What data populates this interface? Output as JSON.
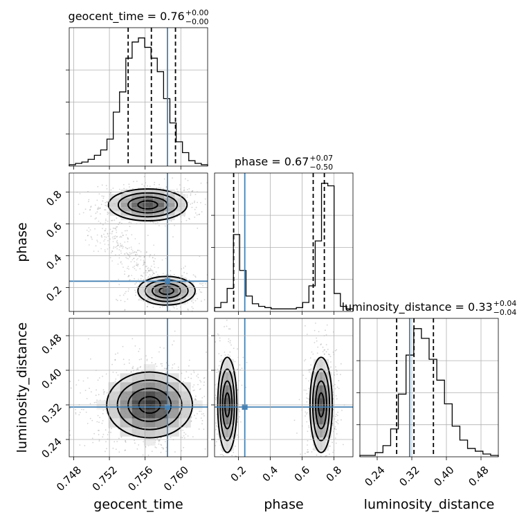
{
  "chart_data": {
    "type": "corner",
    "colors": {
      "truth": "#4682b4",
      "hist": "#000000",
      "grid": "#b0b0b0",
      "points": "#808080"
    },
    "parameters": [
      "geocent_time",
      "phase",
      "luminosity_distance"
    ],
    "axis_labels": {
      "geocent_time": "geocent_time",
      "phase": "phase",
      "luminosity_distance": "luminosity_distance"
    },
    "titles": {
      "geocent_time": {
        "main": "geocent_time = 0.76",
        "sup": "+0.00",
        "sub": "−0.00"
      },
      "phase": {
        "main": "phase = 0.67",
        "sup": "+0.07",
        "sub": "−0.50"
      },
      "luminosity_distance": {
        "main": "luminosity_distance = 0.33",
        "sup": "+0.04",
        "sub": "−0.04"
      }
    },
    "ranges": {
      "geocent_time": [
        0.7475,
        0.763
      ],
      "phase": [
        0.05,
        0.92
      ],
      "luminosity_distance": [
        0.2,
        0.52
      ]
    },
    "ticks": {
      "geocent_time": {
        "values": [
          0.748,
          0.752,
          0.756,
          0.76
        ],
        "labels": [
          "0.748",
          "0.752",
          "0.756",
          "0.760"
        ]
      },
      "phase": {
        "values": [
          0.2,
          0.4,
          0.6,
          0.8
        ],
        "labels": [
          "0.2",
          "0.4",
          "0.6",
          "0.8"
        ]
      },
      "luminosity_distance": {
        "values": [
          0.24,
          0.32,
          0.4,
          0.48
        ],
        "labels": [
          "0.24",
          "0.32",
          "0.40",
          "0.48"
        ]
      }
    },
    "truths": {
      "geocent_time": 0.7585,
      "phase": 0.24,
      "luminosity_distance": 0.315
    },
    "quantiles": {
      "geocent_time": [
        0.7541,
        0.7567,
        0.7594
      ],
      "phase": [
        0.17,
        0.67,
        0.74
      ],
      "luminosity_distance": [
        0.285,
        0.325,
        0.37
      ]
    },
    "histograms": {
      "geocent_time": {
        "edges_range": [
          0.7475,
          0.763
        ],
        "counts": [
          1,
          2,
          3,
          5,
          8,
          12,
          20,
          40,
          55,
          80,
          92,
          95,
          88,
          80,
          70,
          50,
          32,
          18,
          10,
          4,
          2,
          1
        ]
      },
      "phase": {
        "edges_range": [
          0.05,
          0.92
        ],
        "counts": [
          3,
          7,
          18,
          60,
          32,
          12,
          6,
          4,
          3,
          2,
          2,
          2,
          2,
          3,
          7,
          20,
          55,
          100,
          98,
          14,
          4,
          2
        ]
      },
      "luminosity_distance": {
        "edges_range": [
          0.2,
          0.52
        ],
        "counts": [
          1,
          1,
          3,
          8,
          20,
          45,
          73,
          92,
          85,
          70,
          55,
          38,
          22,
          12,
          6,
          4,
          2,
          1
        ]
      }
    },
    "density_2d": [
      {
        "x": "geocent_time",
        "y": "phase",
        "modes": [
          {
            "x": 0.7563,
            "y": 0.72,
            "sx": 0.0022,
            "sy": 0.05,
            "weight": 0.62
          },
          {
            "x": 0.7584,
            "y": 0.18,
            "sx": 0.0016,
            "sy": 0.045,
            "weight": 0.38
          }
        ]
      },
      {
        "x": "geocent_time",
        "y": "luminosity_distance",
        "modes": [
          {
            "x": 0.7565,
            "y": 0.32,
            "sx": 0.0024,
            "sy": 0.038,
            "weight": 1.0
          }
        ]
      },
      {
        "x": "phase",
        "y": "luminosity_distance",
        "modes": [
          {
            "x": 0.13,
            "y": 0.32,
            "sx": 0.03,
            "sy": 0.055,
            "weight": 0.42
          },
          {
            "x": 0.72,
            "y": 0.32,
            "sx": 0.035,
            "sy": 0.055,
            "weight": 0.58
          }
        ]
      }
    ]
  }
}
